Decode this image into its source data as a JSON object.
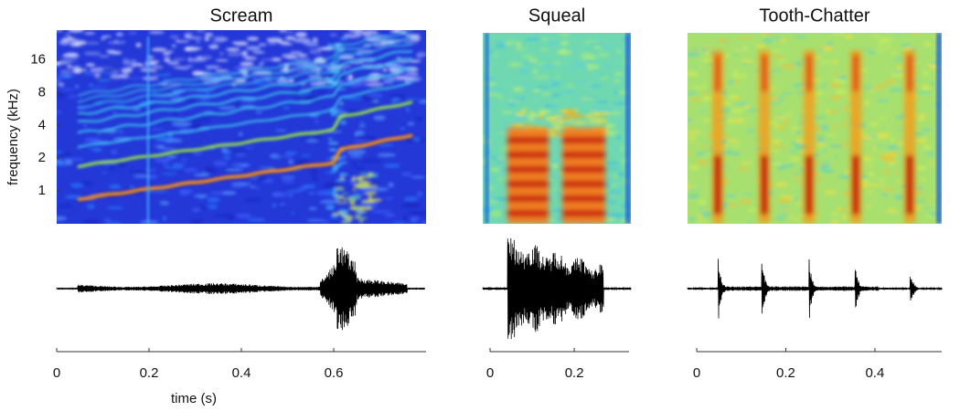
{
  "chart_data": [
    {
      "type": "spectrogram",
      "title": "Scream",
      "xlabel": "time (s)",
      "ylabel": "frequency (kHz)",
      "xlim": [
        0,
        0.8
      ],
      "xticks": [
        0,
        0.2,
        0.4,
        0.6
      ],
      "ylim": [
        0.5,
        30
      ],
      "yticks": [
        1,
        2,
        4,
        8,
        16
      ],
      "log_y": true
    },
    {
      "type": "spectrogram",
      "title": "Squeal",
      "xlim": [
        0,
        0.33
      ],
      "xticks": [
        0,
        0.2
      ]
    },
    {
      "type": "spectrogram",
      "title": "Tooth-Chatter",
      "xlim": [
        0,
        0.55
      ],
      "xticks": [
        0,
        0.2,
        0.4
      ]
    }
  ]
}
